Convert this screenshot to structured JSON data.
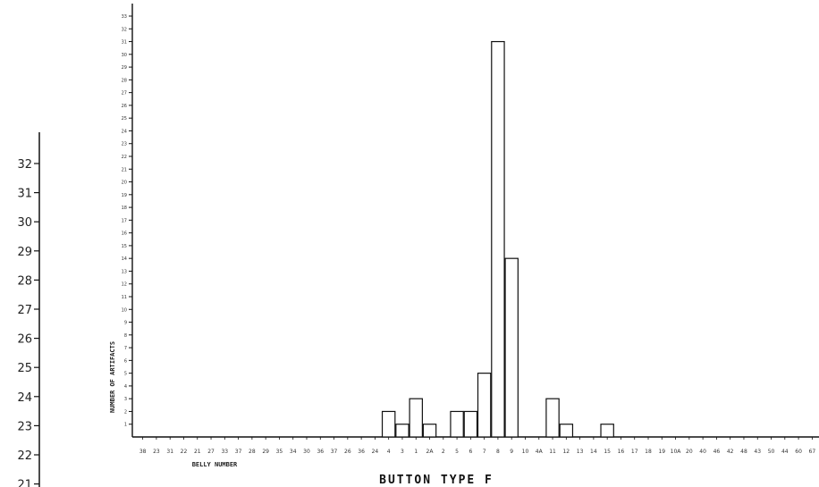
{
  "chart_data": [
    {
      "type": "bar",
      "title": "BUTTON TYPE F",
      "xlabel": "BELLY NUMBER",
      "ylabel": "NUMBER OF ARTIFACTS",
      "ylim": [
        0,
        33
      ],
      "yticks": [
        1,
        2,
        3,
        4,
        5,
        6,
        7,
        8,
        9,
        10,
        11,
        12,
        13,
        14,
        15,
        16,
        17,
        18,
        19,
        20,
        21,
        22,
        23,
        24,
        25,
        26,
        27,
        28,
        29,
        30,
        31,
        32,
        33
      ],
      "categories": [
        "38",
        "23",
        "31",
        "22",
        "21",
        "27",
        "33",
        "37",
        "28",
        "29",
        "35",
        "34",
        "30",
        "36",
        "37",
        "26",
        "36",
        "24",
        "4",
        "3",
        "1",
        "2A",
        "2",
        "5",
        "6",
        "7",
        "8",
        "9",
        "10",
        "4A",
        "11",
        "12",
        "13",
        "14",
        "15",
        "16",
        "17",
        "18",
        "19",
        "10A",
        "20",
        "40",
        "46",
        "42",
        "48",
        "43",
        "50",
        "44",
        "60",
        "67"
      ],
      "values": [
        0,
        0,
        0,
        0,
        0,
        0,
        0,
        0,
        0,
        0,
        0,
        0,
        0,
        0,
        0,
        0,
        0,
        0,
        2,
        1,
        3,
        1,
        0,
        2,
        2,
        5,
        31,
        14,
        0,
        0,
        3,
        1,
        0,
        0,
        1,
        0,
        0,
        0,
        0,
        0,
        0,
        0,
        0,
        0,
        0,
        0,
        0,
        0,
        0,
        0
      ],
      "grid": false,
      "legend": "none"
    },
    {
      "type": "axis",
      "yticks": [
        "32",
        "31",
        "30",
        "29",
        "28",
        "27",
        "26",
        "25",
        "24",
        "23",
        "22",
        "21"
      ]
    }
  ]
}
